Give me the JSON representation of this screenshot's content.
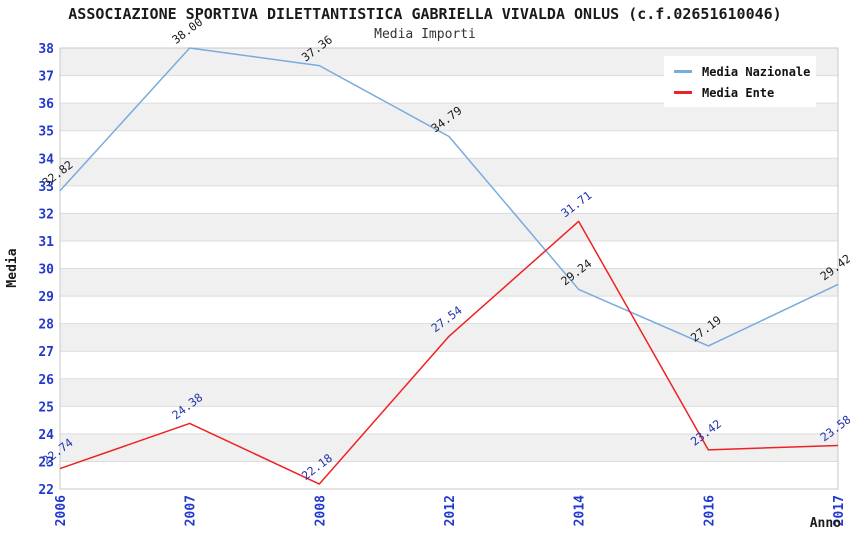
{
  "header": {
    "title": "ASSOCIAZIONE SPORTIVA DILETTANTISTICA GABRIELLA VIVALDA ONLUS (c.f.02651610046)",
    "subtitle": "Media Importi"
  },
  "legend": {
    "items": [
      {
        "label": "Media Nazionale",
        "color": "#79abdf"
      },
      {
        "label": "Media Ente",
        "color": "#ee2222"
      }
    ]
  },
  "chart_data": {
    "type": "line",
    "title": "ASSOCIAZIONE SPORTIVA DILETTANTISTICA GABRIELLA VIVALDA ONLUS (c.f.02651610046)",
    "subtitle": "Media Importi",
    "xlabel": "Anno",
    "ylabel": "Media",
    "categories": [
      "2006",
      "2007",
      "2008",
      "2012",
      "2014",
      "2016",
      "2017"
    ],
    "series": [
      {
        "name": "Media Nazionale",
        "color": "#79abdf",
        "label_color": "#1a1a1a",
        "values": [
          32.82,
          38.0,
          37.36,
          34.79,
          29.24,
          27.19,
          29.42
        ]
      },
      {
        "name": "Media Ente",
        "color": "#ee2222",
        "label_color": "#2233aa",
        "values": [
          22.74,
          24.38,
          22.18,
          27.54,
          31.71,
          23.42,
          23.58
        ]
      }
    ],
    "ylim": [
      22,
      38
    ],
    "ytick_step": 1,
    "value_decimals": 2,
    "grid": true,
    "legend_position": "top-right",
    "styles": {
      "band_fill": "#f0f0f0",
      "grid_color": "#dcdcdc",
      "border_color": "#c8c8c8",
      "tick_label_color": "#2239cc",
      "axis_title_color": "#1a1a1a"
    }
  }
}
